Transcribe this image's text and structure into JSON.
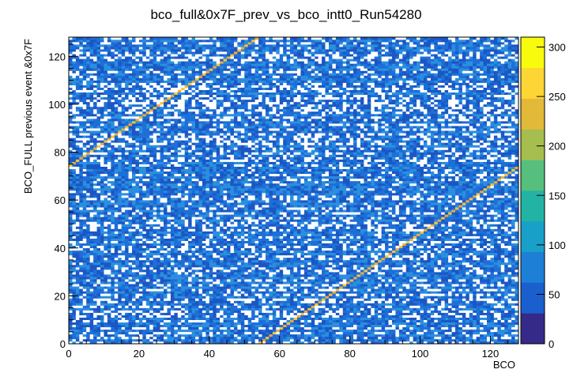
{
  "chart_data": {
    "type": "heatmap",
    "title": "bco_full&0x7F_prev_vs_bco_intt0_Run54280",
    "xlabel": "BCO",
    "ylabel": "BCO_FULL previous event &0x7F",
    "xlim": [
      0,
      128
    ],
    "ylim": [
      0,
      128
    ],
    "bins": [
      128,
      128
    ],
    "x_ticks": [
      0,
      20,
      40,
      60,
      80,
      100,
      120
    ],
    "y_ticks": [
      0,
      20,
      40,
      60,
      80,
      100,
      120
    ],
    "zlim": [
      0,
      310
    ],
    "z_ticks": [
      0,
      50,
      100,
      150,
      200,
      250,
      300
    ],
    "background_count_range": [
      1,
      10
    ],
    "diagonal_band": {
      "description_values": "y = (x + 74) mod 128",
      "offset": 74,
      "modulus": 128,
      "peak_count": 300
    },
    "colormap": [
      "#352a87",
      "#1b5fcf",
      "#1e7fd6",
      "#18a0c8",
      "#23b3a5",
      "#57bf7d",
      "#a5be4e",
      "#e3b93a",
      "#fdd534",
      "#f9fb0e"
    ],
    "grid": false,
    "legend": "colorbar-right"
  }
}
